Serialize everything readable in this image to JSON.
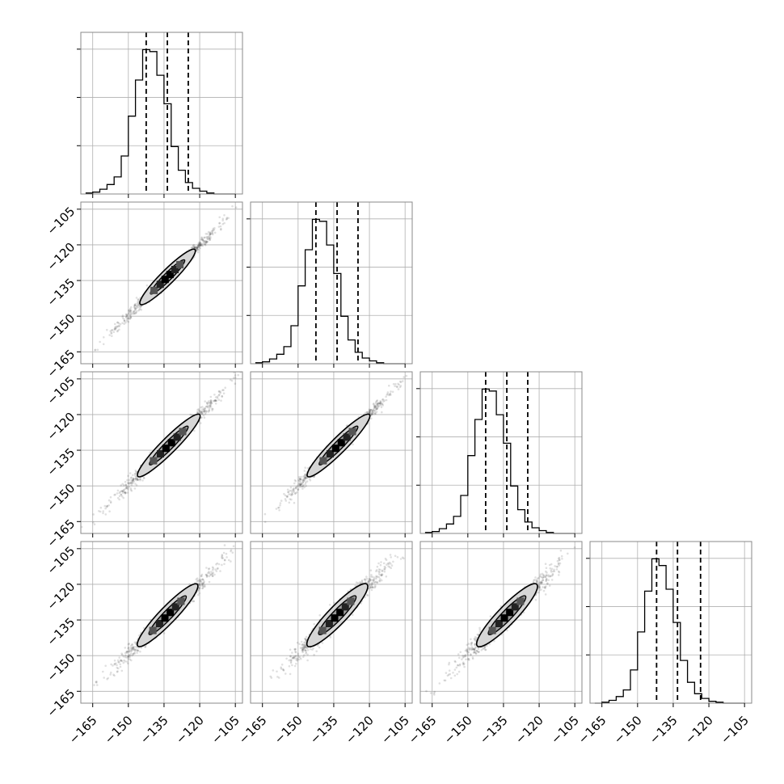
{
  "chart_data": {
    "type": "corner",
    "title": "",
    "n_params": 4,
    "param_labels": [
      "",
      "",
      "",
      ""
    ],
    "axis_range": [
      -170,
      -102
    ],
    "ticks": [
      -165,
      -150,
      -135,
      -120,
      -105
    ],
    "tick_labels": [
      "−165",
      "−150",
      "−135",
      "−120",
      "−105"
    ],
    "grid": true,
    "hist_bins_edges": [
      -168,
      -165,
      -162,
      -159,
      -156,
      -153,
      -150,
      -147,
      -144,
      -141,
      -138,
      -135,
      -132,
      -129,
      -126,
      -123,
      -120,
      -117,
      -114,
      -111,
      -108,
      -105
    ],
    "histograms": [
      {
        "param": 1,
        "counts": [
          1,
          2,
          5,
          10,
          18,
          40,
          82,
          120,
          152,
          150,
          125,
          95,
          50,
          25,
          12,
          6,
          3,
          1,
          0,
          0,
          0
        ],
        "quantiles": [
          -142.5,
          -133.6,
          -124.8
        ]
      },
      {
        "param": 2,
        "counts": [
          1,
          2,
          5,
          10,
          18,
          40,
          82,
          120,
          152,
          150,
          125,
          95,
          50,
          25,
          12,
          6,
          3,
          1,
          0,
          0,
          0
        ],
        "quantiles": [
          -142.5,
          -133.6,
          -124.8
        ]
      },
      {
        "param": 3,
        "counts": [
          1,
          2,
          5,
          10,
          18,
          40,
          82,
          120,
          152,
          150,
          125,
          95,
          50,
          25,
          12,
          6,
          3,
          1,
          0,
          0,
          0
        ],
        "quantiles": [
          -142.5,
          -133.6,
          -124.8
        ]
      },
      {
        "param": 4,
        "counts": [
          0,
          1,
          3,
          7,
          14,
          35,
          75,
          118,
          152,
          145,
          120,
          85,
          45,
          22,
          10,
          5,
          2,
          1,
          0,
          0,
          0
        ],
        "quantiles": [
          -142.0,
          -133.2,
          -123.5
        ]
      }
    ],
    "scatter_panels": [
      {
        "row": 2,
        "col": 1,
        "center": [
          -133.6,
          -133.6
        ],
        "extent": [
          -168,
          -104
        ],
        "contour_low": [
          -145,
          -145
        ],
        "contour_high": [
          -122,
          -122
        ],
        "width": 0.9
      },
      {
        "row": 3,
        "col": 1,
        "center": [
          -133.6,
          -133.6
        ],
        "extent": [
          -168,
          -104
        ],
        "contour_low": [
          -146,
          -146
        ],
        "contour_high": [
          -120,
          -120
        ],
        "width": 1.1
      },
      {
        "row": 3,
        "col": 2,
        "center": [
          -133.6,
          -133.6
        ],
        "extent": [
          -168,
          -104
        ],
        "contour_low": [
          -146,
          -146
        ],
        "contour_high": [
          -120,
          -120
        ],
        "width": 1.1
      },
      {
        "row": 4,
        "col": 1,
        "center": [
          -133.6,
          -133.2
        ],
        "extent": [
          -168,
          -104
        ],
        "contour_low": [
          -146,
          -146
        ],
        "contour_high": [
          -121,
          -120
        ],
        "width": 1.3
      },
      {
        "row": 4,
        "col": 2,
        "center": [
          -133.6,
          -133.2
        ],
        "extent": [
          -168,
          -104
        ],
        "contour_low": [
          -146,
          -146
        ],
        "contour_high": [
          -121,
          -120
        ],
        "width": 1.6
      },
      {
        "row": 4,
        "col": 3,
        "center": [
          -133.6,
          -133.2
        ],
        "extent": [
          -168,
          -104
        ],
        "contour_low": [
          -146,
          -146
        ],
        "contour_high": [
          -121,
          -120
        ],
        "width": 1.6
      }
    ]
  }
}
